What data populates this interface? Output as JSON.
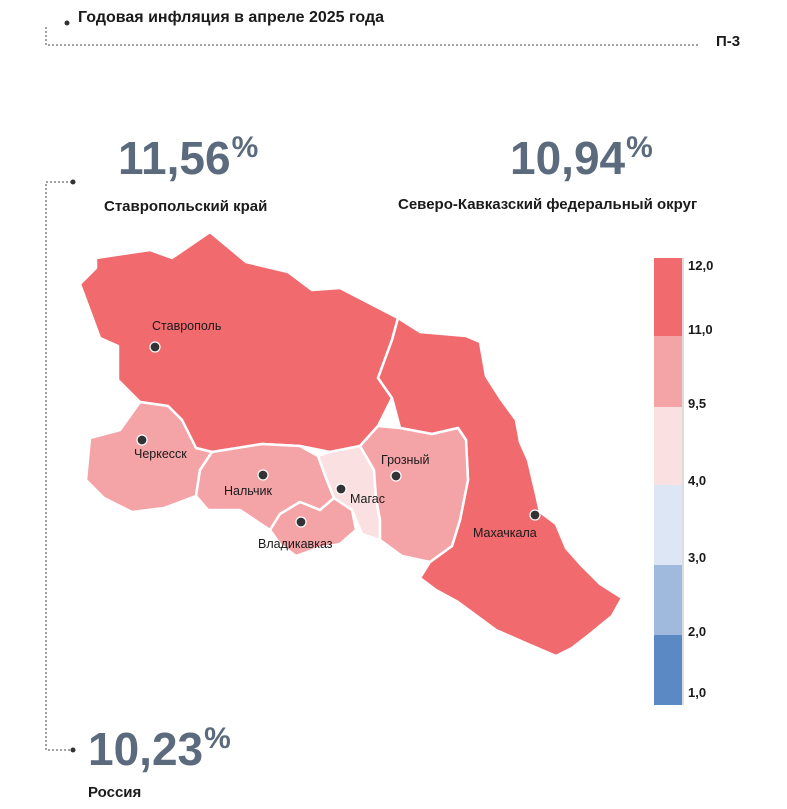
{
  "header": {
    "title": "Годовая инфляция в апреле 2025 года",
    "code": "П-3"
  },
  "stats": [
    {
      "value": "11,56",
      "unit": "%",
      "label": "Ставропольский край"
    },
    {
      "value": "10,94",
      "unit": "%",
      "label": "Северо-Кавказский федеральный округ"
    },
    {
      "value": "10,23",
      "unit": "%",
      "label": "Россия"
    }
  ],
  "cities": [
    "Ставрополь",
    "Черкесск",
    "Нальчик",
    "Владикавказ",
    "Магас",
    "Грозный",
    "Махачкала"
  ],
  "legend": {
    "ticks": [
      "12,0",
      "11,0",
      "9,5",
      "4,0",
      "3,0",
      "2,0",
      "1,0"
    ],
    "bins": [
      {
        "from": 11.0,
        "to": 12.0,
        "color": "#f06a6e"
      },
      {
        "from": 9.5,
        "to": 11.0,
        "color": "#f4a3a6"
      },
      {
        "from": 4.0,
        "to": 9.5,
        "color": "#fbe0e2"
      },
      {
        "from": 3.0,
        "to": 4.0,
        "color": "#dce6f4"
      },
      {
        "from": 2.0,
        "to": 3.0,
        "color": "#9fbadc"
      },
      {
        "from": 1.0,
        "to": 2.0,
        "color": "#5a89c4"
      }
    ]
  },
  "regions": [
    {
      "name": "Ставропольский край",
      "bin": "11,0–12,0",
      "color": "#f06a6e"
    },
    {
      "name": "Дагестан",
      "bin": "11,0–12,0",
      "color": "#f06a6e"
    },
    {
      "name": "Карачаево-Черкесия",
      "bin": "9,5–11,0",
      "color": "#f4a3a6"
    },
    {
      "name": "Кабардино-Балкария",
      "bin": "9,5–11,0",
      "color": "#f4a3a6"
    },
    {
      "name": "Северная Осетия",
      "bin": "9,5–11,0",
      "color": "#f4a3a6"
    },
    {
      "name": "Чечня",
      "bin": "9,5–11,0",
      "color": "#f4a3a6"
    },
    {
      "name": "Ингушетия",
      "bin": "4,0–9,5",
      "color": "#fbe0e2"
    }
  ]
}
